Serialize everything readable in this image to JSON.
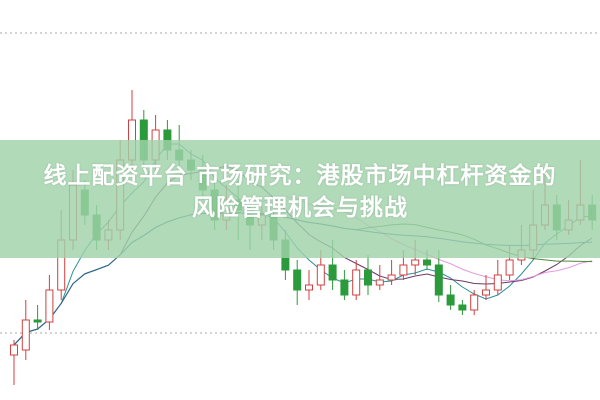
{
  "title": {
    "line1": "线上配资平台 市场研究：港股市场中杠杆资金的",
    "line2": "风险管理机会与挑战"
  },
  "colors": {
    "up": "#d04040",
    "down": "#2a9a3a",
    "band": "#a0d2aa",
    "ma": [
      "#2a8f9a",
      "#6a3a6a",
      "#e79ae0",
      "#4a8a3a",
      "#2a6a9a"
    ]
  },
  "chart_data": {
    "type": "candlestick",
    "title": "",
    "xlabel": "",
    "ylabel": "",
    "grid": "dotted horizontal",
    "moving_averages": [
      5,
      10,
      20,
      30,
      60
    ],
    "candles": [
      [
        45,
        55,
        60,
        15
      ],
      [
        50,
        80,
        100,
        40
      ],
      [
        80,
        78,
        95,
        70
      ],
      [
        78,
        110,
        125,
        70
      ],
      [
        110,
        160,
        190,
        100
      ],
      [
        160,
        215,
        230,
        150
      ],
      [
        210,
        185,
        220,
        175
      ],
      [
        185,
        160,
        195,
        150
      ],
      [
        160,
        170,
        180,
        150
      ],
      [
        170,
        240,
        260,
        160
      ],
      [
        240,
        280,
        310,
        230
      ],
      [
        280,
        240,
        290,
        230
      ],
      [
        240,
        270,
        285,
        230
      ],
      [
        270,
        250,
        280,
        240
      ],
      [
        250,
        240,
        275,
        230
      ],
      [
        240,
        230,
        250,
        220
      ],
      [
        230,
        210,
        245,
        200
      ],
      [
        210,
        180,
        225,
        170
      ],
      [
        180,
        200,
        215,
        170
      ],
      [
        200,
        190,
        220,
        160
      ],
      [
        190,
        175,
        200,
        150
      ],
      [
        175,
        185,
        195,
        160
      ],
      [
        185,
        160,
        190,
        150
      ],
      [
        160,
        130,
        170,
        120
      ],
      [
        130,
        110,
        140,
        95
      ],
      [
        110,
        115,
        130,
        100
      ],
      [
        115,
        135,
        150,
        110
      ],
      [
        135,
        120,
        160,
        110
      ],
      [
        120,
        105,
        130,
        100
      ],
      [
        105,
        130,
        140,
        100
      ],
      [
        130,
        115,
        145,
        105
      ],
      [
        115,
        120,
        135,
        110
      ],
      [
        120,
        125,
        140,
        115
      ],
      [
        125,
        135,
        150,
        120
      ],
      [
        135,
        140,
        160,
        125
      ],
      [
        140,
        135,
        150,
        130
      ],
      [
        135,
        105,
        150,
        98
      ],
      [
        105,
        95,
        115,
        90
      ],
      [
        95,
        90,
        100,
        85
      ],
      [
        90,
        105,
        110,
        85
      ],
      [
        105,
        110,
        125,
        100
      ],
      [
        110,
        125,
        140,
        105
      ],
      [
        125,
        140,
        155,
        120
      ],
      [
        140,
        150,
        175,
        135
      ],
      [
        150,
        175,
        210,
        140
      ],
      [
        175,
        195,
        230,
        170
      ],
      [
        195,
        170,
        205,
        160
      ],
      [
        170,
        180,
        200,
        165
      ],
      [
        180,
        195,
        240,
        175
      ],
      [
        195,
        180,
        205,
        170
      ]
    ],
    "candle_format": [
      "open",
      "close",
      "high",
      "low"
    ]
  }
}
